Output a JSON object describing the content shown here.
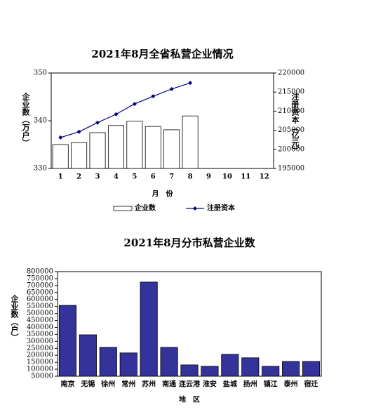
{
  "chart_data": [
    {
      "type": "bar",
      "title": "2021年8月全省私营企业情况",
      "categories": [
        "1",
        "2",
        "3",
        "4",
        "5",
        "6",
        "7",
        "8",
        "9",
        "10",
        "11",
        "12"
      ],
      "series": [
        {
          "name": "企业数",
          "color": "#ffffff",
          "values": [
            335.0,
            335.4,
            337.5,
            339.0,
            339.9,
            338.8,
            338.1,
            341.0,
            null,
            null,
            null,
            null
          ]
        },
        {
          "name": "注册资本",
          "type": "line",
          "axis": "y2",
          "color": "#000080",
          "values": [
            203100,
            204600,
            207000,
            209200,
            211900,
            213900,
            215800,
            217400,
            null,
            null,
            null,
            null
          ]
        }
      ],
      "ylabel": "企业数（万户）",
      "y2label": "注册资本（亿元）",
      "xlabel": "月　份",
      "ylim": [
        330,
        350
      ],
      "yticks": [
        330,
        340,
        350
      ],
      "y2lim": [
        195000,
        220000
      ],
      "y2ticks": [
        195000,
        200000,
        205000,
        210000,
        215000,
        220000
      ],
      "legend": "bottom"
    },
    {
      "type": "bar",
      "title": "2021年8月分市私营企业数",
      "categories": [
        "南京",
        "无锡",
        "徐州",
        "常州",
        "苏州",
        "南通",
        "连云港",
        "淮安",
        "盐城",
        "扬州",
        "镇江",
        "泰州",
        "宿迁"
      ],
      "series": [
        {
          "name": "企业数",
          "color": "#333399",
          "values": [
            558000,
            347000,
            257000,
            217000,
            725000,
            257000,
            131000,
            121000,
            207000,
            182000,
            121000,
            156000,
            156000
          ]
        }
      ],
      "ylabel": "企业数（户）",
      "xlabel": "地　区",
      "ylim": [
        50000,
        800000
      ],
      "yticks": [
        50000,
        100000,
        150000,
        200000,
        250000,
        300000,
        350000,
        400000,
        450000,
        500000,
        550000,
        600000,
        650000,
        700000,
        750000,
        800000
      ]
    }
  ]
}
